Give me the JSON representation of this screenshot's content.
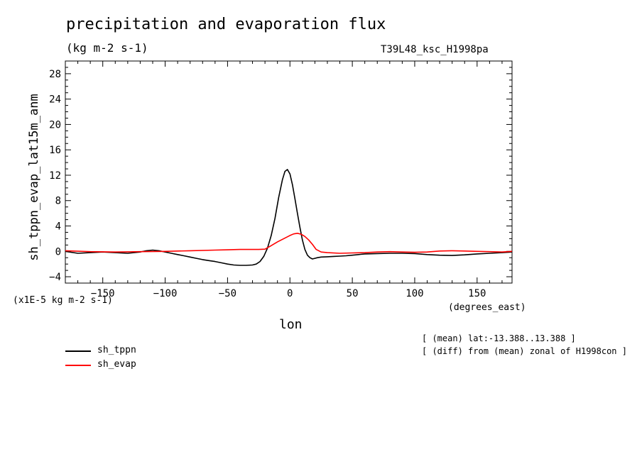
{
  "title": "precipitation and evaporation flux",
  "units": "(kg m-2 s-1)",
  "run_name": "T39L48_ksc_H1998pa",
  "y_multiplier_label": "(x1E-5 kg m-2 s-1)",
  "x_units_label": "(degrees_east)",
  "notes": [
    "[ (mean) lat:-13.388..13.388 ]",
    "[ (diff) from (mean) zonal of H1998con ]"
  ],
  "legend": [
    {
      "label": "sh_tppn",
      "color": "#000000"
    },
    {
      "label": "sh_evap",
      "color": "#ff0000"
    }
  ],
  "chart_data": {
    "type": "line",
    "xlabel": "lon",
    "ylabel": "sh_tppn_evap_lat15m_anm",
    "xlim": [
      -180,
      178
    ],
    "ylim": [
      -5,
      30
    ],
    "xticks": [
      -150,
      -100,
      -50,
      0,
      50,
      100,
      150
    ],
    "yticks": [
      -4,
      0,
      4,
      8,
      12,
      16,
      20,
      24,
      28
    ],
    "series": [
      {
        "name": "sh_tppn",
        "color": "#000000",
        "x": [
          -180,
          -170,
          -160,
          -150,
          -140,
          -130,
          -120,
          -115,
          -110,
          -105,
          -100,
          -95,
          -90,
          -85,
          -80,
          -75,
          -70,
          -65,
          -60,
          -55,
          -50,
          -45,
          -40,
          -35,
          -30,
          -27,
          -24,
          -21,
          -18,
          -15,
          -12,
          -9,
          -6,
          -4,
          -2,
          0,
          2,
          4,
          6,
          8,
          10,
          12,
          14,
          16,
          18,
          20,
          22,
          25,
          30,
          35,
          40,
          45,
          50,
          55,
          60,
          70,
          80,
          90,
          100,
          110,
          120,
          130,
          140,
          150,
          160,
          170,
          178
        ],
        "y": [
          0,
          -0.3,
          -0.2,
          -0.1,
          -0.2,
          -0.3,
          -0.1,
          0.1,
          0.2,
          0.1,
          -0.1,
          -0.3,
          -0.5,
          -0.7,
          -0.9,
          -1.1,
          -1.3,
          -1.45,
          -1.6,
          -1.8,
          -2.0,
          -2.15,
          -2.2,
          -2.2,
          -2.15,
          -2.0,
          -1.6,
          -0.8,
          0.5,
          2.5,
          5.2,
          8.5,
          11.3,
          12.6,
          12.9,
          12.2,
          10.5,
          8.3,
          6.0,
          3.8,
          1.8,
          0.3,
          -0.6,
          -1.0,
          -1.2,
          -1.1,
          -1.0,
          -0.9,
          -0.85,
          -0.8,
          -0.75,
          -0.7,
          -0.6,
          -0.5,
          -0.4,
          -0.35,
          -0.3,
          -0.3,
          -0.35,
          -0.5,
          -0.6,
          -0.65,
          -0.55,
          -0.4,
          -0.3,
          -0.2,
          -0.1
        ]
      },
      {
        "name": "sh_evap",
        "color": "#ff0000",
        "x": [
          -180,
          -160,
          -140,
          -120,
          -100,
          -80,
          -60,
          -50,
          -40,
          -30,
          -25,
          -20,
          -15,
          -10,
          -5,
          0,
          3,
          6,
          9,
          12,
          15,
          18,
          21,
          25,
          30,
          40,
          50,
          60,
          70,
          80,
          90,
          100,
          110,
          120,
          130,
          140,
          150,
          160,
          170,
          178
        ],
        "y": [
          0.1,
          -0.05,
          -0.1,
          -0.05,
          0,
          0.1,
          0.2,
          0.25,
          0.3,
          0.3,
          0.3,
          0.35,
          0.9,
          1.5,
          2.0,
          2.5,
          2.75,
          2.85,
          2.7,
          2.35,
          1.8,
          1.1,
          0.3,
          -0.1,
          -0.2,
          -0.3,
          -0.25,
          -0.2,
          -0.1,
          -0.05,
          -0.1,
          -0.15,
          -0.1,
          0.05,
          0.1,
          0.05,
          0,
          -0.05,
          -0.1,
          0
        ]
      }
    ]
  }
}
